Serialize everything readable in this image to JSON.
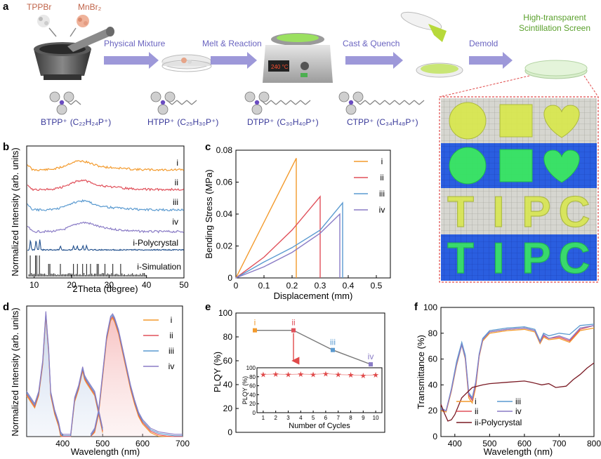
{
  "figure": {
    "panel_labels": {
      "a": "a",
      "b": "b",
      "c": "c",
      "d": "d",
      "e": "e",
      "f": "f"
    },
    "colors": {
      "i": "#f39a2c",
      "ii": "#e0505a",
      "iii": "#5a9ad0",
      "iv": "#8a7cc6",
      "poly": "#1f4e8c",
      "sim": "#111111",
      "ii_poly": "#7a1a24",
      "arrow": "#8c86d2",
      "title_green": "#5aa02c",
      "reactant": "#c0644a",
      "molecule_label": "#3a3a9a",
      "inset_red": "#e04a4a",
      "e_line": "#777777"
    }
  },
  "panel_a": {
    "reactant_1": "TPPBr",
    "reactant_2": "MnBr₂",
    "steps": [
      "Physical Mixture",
      "Melt & Reaction",
      "Cast & Quench",
      "Demold"
    ],
    "product_title_line1": "High-transparent",
    "product_title_line2": "Scintillation Screen",
    "hotplate_display": "240 °C",
    "icons": [
      "mortar-pestle-icon",
      "petri-dish-icon",
      "hotplate-icon",
      "pour-dish-icon",
      "screen-disc-icon"
    ],
    "molecules": [
      {
        "name": "BTPP⁺",
        "formula": "(C₂₂H₂₄P⁺)"
      },
      {
        "name": "HTPP⁺",
        "formula": "(C₂₅H₃₀P⁺)"
      },
      {
        "name": "DTPP⁺",
        "formula": "(C₃₀H₄₀P⁺)"
      },
      {
        "name": "CTPP⁺",
        "formula": "(C₃₄H₄₈P⁺)"
      }
    ],
    "photo_rows": [
      {
        "type": "shapes",
        "lighting": "daylight"
      },
      {
        "type": "shapes",
        "lighting": "uv"
      },
      {
        "type": "letters",
        "lighting": "daylight",
        "letters": [
          "T",
          "I",
          "P",
          "C"
        ]
      },
      {
        "type": "letters",
        "lighting": "uv",
        "letters": [
          "T",
          "I",
          "P",
          "C"
        ]
      }
    ]
  },
  "chart_data": [
    {
      "panel": "b",
      "type": "line",
      "xlabel": "2Theta  (degree)",
      "ylabel": "Normalized Intensity (arb. units)",
      "xlim": [
        8,
        50
      ],
      "xticks": [
        10,
        20,
        30,
        40,
        50
      ],
      "series": [
        {
          "name": "i",
          "label": "i",
          "shape": "amorphous",
          "peak_x": 22
        },
        {
          "name": "ii",
          "label": "ii",
          "shape": "amorphous",
          "peak_x": 22.5
        },
        {
          "name": "iii",
          "label": "iii",
          "shape": "amorphous",
          "peak_x": 22.5
        },
        {
          "name": "iv",
          "label": "iv",
          "shape": "amorphous",
          "peak_x": 23
        },
        {
          "name": "i-Polycrystal",
          "label": "i-Polycrystal",
          "shape": "peaks",
          "peaks_x": [
            9,
            10.5,
            11.5,
            17,
            20.5,
            21.5,
            23,
            24
          ]
        },
        {
          "name": "i-Simulation",
          "label": "i-Simulation",
          "shape": "sticks",
          "peaks_x": [
            9,
            10.5,
            11.5,
            14,
            17,
            20.5,
            21.5,
            23,
            24,
            25,
            27,
            29,
            31,
            33
          ]
        }
      ]
    },
    {
      "panel": "c",
      "type": "line",
      "xlabel": "Displacement (mm)",
      "ylabel": "Bending Stress (MPa)",
      "xlim": [
        0,
        0.55
      ],
      "ylim": [
        0,
        0.08
      ],
      "xticks": [
        0.0,
        0.1,
        0.2,
        0.3,
        0.4,
        0.5
      ],
      "yticks": [
        0.0,
        0.02,
        0.04,
        0.06,
        0.08
      ],
      "series": [
        {
          "name": "i",
          "x": [
            0,
            0.215,
            0.215
          ],
          "y": [
            0,
            0.075,
            0
          ]
        },
        {
          "name": "ii",
          "x": [
            0,
            0.1,
            0.2,
            0.3,
            0.3
          ],
          "y": [
            0,
            0.013,
            0.03,
            0.051,
            0
          ]
        },
        {
          "name": "iii",
          "x": [
            0,
            0.1,
            0.2,
            0.3,
            0.38,
            0.38
          ],
          "y": [
            0,
            0.01,
            0.019,
            0.03,
            0.047,
            0
          ]
        },
        {
          "name": "iv",
          "x": [
            0,
            0.1,
            0.2,
            0.3,
            0.37,
            0.37
          ],
          "y": [
            0,
            0.007,
            0.016,
            0.028,
            0.04,
            0
          ]
        }
      ]
    },
    {
      "panel": "d",
      "type": "line",
      "xlabel": "Wavelength (nm)",
      "ylabel": "Normalized Intensity (arb. units)",
      "xlim": [
        310,
        700
      ],
      "ylim": [
        0,
        1.05
      ],
      "xticks": [
        400,
        500,
        600,
        700
      ],
      "series": [
        {
          "name": "excitation",
          "x": [
            310,
            320,
            330,
            340,
            350,
            358,
            362,
            365,
            370,
            380,
            390,
            395,
            400,
            420,
            430,
            440,
            450,
            455,
            460,
            470,
            480,
            490,
            500
          ],
          "y": [
            0.35,
            0.3,
            0.25,
            0.35,
            0.6,
            1.0,
            0.82,
            0.7,
            0.35,
            0.2,
            0.1,
            0.02,
            0.0,
            0.0,
            0.3,
            0.4,
            0.55,
            0.48,
            0.45,
            0.4,
            0.35,
            0.2,
            0.05
          ]
        },
        {
          "name": "emission",
          "x": [
            470,
            480,
            490,
            500,
            510,
            520,
            525,
            530,
            540,
            550,
            560,
            570,
            580,
            590,
            600,
            620,
            640,
            660,
            680,
            700
          ],
          "y": [
            0.0,
            0.05,
            0.2,
            0.5,
            0.8,
            0.96,
            0.98,
            0.95,
            0.85,
            0.7,
            0.55,
            0.4,
            0.28,
            0.18,
            0.12,
            0.05,
            0.02,
            0.01,
            0.0,
            0.0
          ]
        }
      ],
      "legend": [
        "i",
        "ii",
        "iii",
        "iv"
      ]
    },
    {
      "panel": "e",
      "type": "line",
      "xlabel": "",
      "ylabel": "PLQY (%)",
      "ylim": [
        0,
        100
      ],
      "yticks": [
        0,
        20,
        40,
        60,
        80,
        100
      ],
      "categories": [
        "i",
        "ii",
        "iii",
        "iv"
      ],
      "values": [
        85.5,
        85.5,
        69,
        57
      ],
      "arrow_from": "ii",
      "inset": {
        "xlabel": "Number of Cycles",
        "ylabel": "PLQY (%)",
        "ylim": [
          0,
          100
        ],
        "yticks": [
          0,
          20,
          40,
          60,
          80,
          100
        ],
        "x": [
          1,
          2,
          3,
          4,
          5,
          6,
          7,
          8,
          9,
          10
        ],
        "y": [
          85,
          86,
          85,
          86,
          85,
          87,
          85,
          84,
          83,
          84
        ]
      }
    },
    {
      "panel": "f",
      "type": "line",
      "xlabel": "Wavelength (nm)",
      "ylabel": "Transmittance (%)",
      "xlim": [
        360,
        800
      ],
      "ylim": [
        0,
        100
      ],
      "xticks": [
        400,
        500,
        600,
        700,
        800
      ],
      "yticks": [
        0,
        20,
        40,
        60,
        80,
        100
      ],
      "series": [
        {
          "name": "i",
          "x": [
            360,
            375,
            390,
            405,
            420,
            430,
            440,
            450,
            460,
            470,
            480,
            500,
            550,
            600,
            630,
            645,
            655,
            670,
            700,
            730,
            760,
            800
          ],
          "y": [
            20,
            19,
            35,
            55,
            71,
            60,
            30,
            26,
            38,
            62,
            74,
            80,
            82,
            83,
            81,
            72,
            77,
            75,
            76,
            73,
            82,
            84
          ]
        },
        {
          "name": "ii",
          "x": [
            360,
            375,
            390,
            405,
            420,
            430,
            440,
            450,
            460,
            470,
            480,
            500,
            550,
            600,
            630,
            645,
            655,
            670,
            700,
            730,
            760,
            800
          ],
          "y": [
            21,
            20,
            36,
            57,
            72,
            62,
            32,
            28,
            40,
            63,
            75,
            81,
            83,
            84,
            82,
            73,
            78,
            76,
            77,
            74,
            83,
            86
          ]
        },
        {
          "name": "iii",
          "x": [
            360,
            375,
            390,
            405,
            420,
            430,
            440,
            450,
            460,
            470,
            480,
            500,
            550,
            600,
            630,
            645,
            655,
            670,
            700,
            730,
            760,
            800
          ],
          "y": [
            22,
            20,
            37,
            58,
            73,
            63,
            34,
            30,
            42,
            64,
            76,
            82,
            84,
            85,
            83,
            74,
            80,
            78,
            80,
            79,
            86,
            87
          ]
        },
        {
          "name": "iv",
          "x": [
            360,
            375,
            390,
            405,
            420,
            430,
            440,
            450,
            460,
            470,
            480,
            500,
            550,
            600,
            630,
            645,
            655,
            670,
            700,
            730,
            760,
            800
          ],
          "y": [
            21,
            20,
            36,
            56,
            71,
            61,
            33,
            29,
            41,
            63,
            75,
            81,
            83,
            84,
            82,
            73,
            79,
            76,
            78,
            75,
            84,
            86
          ]
        },
        {
          "name": "ii-Polycrystal",
          "x": [
            360,
            370,
            380,
            390,
            400,
            420,
            450,
            480,
            500,
            550,
            600,
            620,
            650,
            670,
            690,
            720,
            740,
            760,
            780,
            800
          ],
          "y": [
            25,
            18,
            12,
            13,
            17,
            30,
            38,
            40,
            41,
            42,
            43,
            42,
            40,
            41,
            38,
            39,
            44,
            48,
            53,
            57
          ]
        }
      ],
      "legend": [
        "i",
        "ii",
        "iii",
        "iv",
        "ii-Polycrystal"
      ]
    }
  ]
}
